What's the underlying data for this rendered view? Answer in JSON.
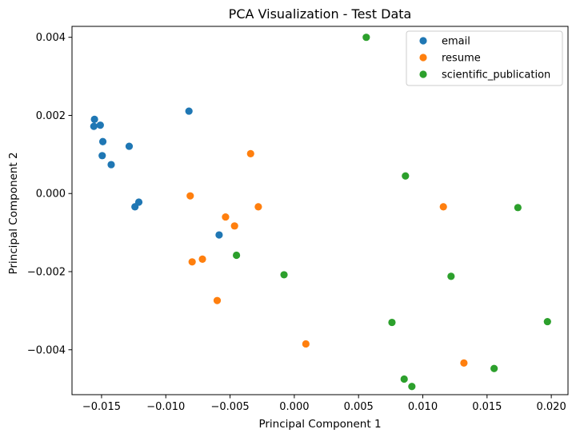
{
  "chart_data": {
    "type": "scatter",
    "title": "PCA Visualization - Test Data",
    "xlabel": "Principal Component 1",
    "ylabel": "Principal Component 2",
    "xlim": [
      -0.0173,
      0.0213
    ],
    "ylim": [
      -0.00515,
      0.00428
    ],
    "xticks": [
      -0.015,
      -0.01,
      -0.005,
      0.0,
      0.005,
      0.01,
      0.015,
      0.02
    ],
    "xtick_labels": [
      "−0.015",
      "−0.010",
      "−0.005",
      "0.000",
      "0.005",
      "0.010",
      "0.015",
      "0.020"
    ],
    "yticks": [
      -0.004,
      -0.002,
      0.0,
      0.002,
      0.004
    ],
    "ytick_labels": [
      "−0.004",
      "−0.002",
      "0.000",
      "0.002",
      "0.004"
    ],
    "grid": false,
    "legend_position": "top-right",
    "series": [
      {
        "name": "email",
        "color": "#1f77b4",
        "points": [
          [
            -0.01555,
            0.0019
          ],
          [
            -0.0156,
            0.00172
          ],
          [
            -0.0151,
            0.00175
          ],
          [
            -0.0149,
            0.00133
          ],
          [
            -0.01495,
            0.00097
          ],
          [
            -0.01425,
            0.00074
          ],
          [
            -0.01285,
            0.00121
          ],
          [
            -0.0082,
            0.00211
          ],
          [
            -0.0121,
            -0.00022
          ],
          [
            -0.0124,
            -0.00034
          ],
          [
            -0.00585,
            -0.00106
          ]
        ]
      },
      {
        "name": "resume",
        "color": "#ff7f0e",
        "points": [
          [
            -0.0081,
            -6e-05
          ],
          [
            -0.0034,
            0.00102
          ],
          [
            -0.0028,
            -0.00034
          ],
          [
            -0.00535,
            -0.0006
          ],
          [
            -0.00465,
            -0.00083
          ],
          [
            -0.00715,
            -0.00168
          ],
          [
            -0.00795,
            -0.00175
          ],
          [
            -0.006,
            -0.00274
          ],
          [
            0.0009,
            -0.00385
          ],
          [
            0.0116,
            -0.00034
          ],
          [
            0.0132,
            -0.00434
          ]
        ]
      },
      {
        "name": "scientific_publication",
        "color": "#2ca02c",
        "points": [
          [
            0.0056,
            0.004
          ],
          [
            0.00865,
            0.00045
          ],
          [
            0.0174,
            -0.00036
          ],
          [
            -0.0045,
            -0.00158
          ],
          [
            -0.0008,
            -0.00208
          ],
          [
            0.0122,
            -0.00212
          ],
          [
            0.0076,
            -0.0033
          ],
          [
            0.0197,
            -0.00328
          ],
          [
            0.01555,
            -0.00448
          ],
          [
            0.00855,
            -0.00475
          ],
          [
            0.00915,
            -0.00494
          ]
        ]
      }
    ]
  }
}
